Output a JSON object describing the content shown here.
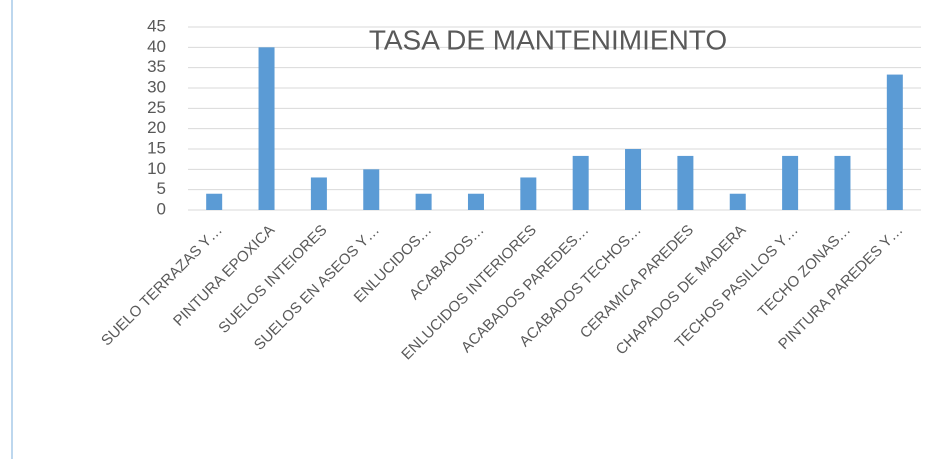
{
  "chart_data": {
    "type": "bar",
    "title": "TASA DE MANTENIMIENTO",
    "categories": [
      "SUELO TERRAZAS Y…",
      "PINTURA EPOXICA",
      "SUELOS INTEIORES",
      "SUELOS EN ASEOS Y…",
      "ENLUCIDOS…",
      "ACABADOS…",
      "ENLUCIDOS INTERIORES",
      "ACABADOS PAREDES…",
      "ACABADOS TECHOS…",
      "CERAMICA PAREDES",
      "CHAPADOS DE MADERA",
      "TECHOS PASILLOS Y…",
      "TECHO ZONAS…",
      "PINTURA PAREDES Y…"
    ],
    "values": [
      4,
      40,
      8,
      10,
      4,
      4,
      8,
      13.3,
      15,
      13.3,
      4,
      13.3,
      13.3,
      33.3
    ],
    "color": "#5b9bd5",
    "ylim": [
      0,
      45
    ],
    "yticks": [
      0,
      5,
      10,
      15,
      20,
      25,
      30,
      35,
      40,
      45
    ],
    "grid": true
  }
}
